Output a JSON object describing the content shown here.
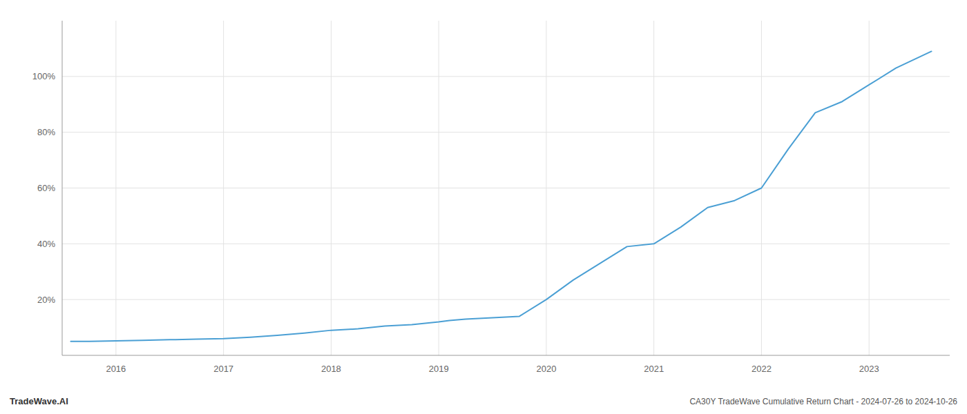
{
  "chart_data": {
    "type": "line",
    "title": "CA30Y TradeWave Cumulative Return Chart - 2024-07-26 to 2024-10-26",
    "annotations": [
      "TradeWave.AI"
    ],
    "color": "#4a9fd4",
    "x": [
      2015.58,
      2015.75,
      2016.0,
      2016.25,
      2016.5,
      2016.75,
      2017.0,
      2017.25,
      2017.5,
      2017.75,
      2018.0,
      2018.25,
      2018.5,
      2018.75,
      2019.0,
      2019.1,
      2019.25,
      2019.5,
      2019.75,
      2020.0,
      2020.25,
      2020.5,
      2020.75,
      2021.0,
      2021.25,
      2021.5,
      2021.75,
      2022.0,
      2022.25,
      2022.5,
      2022.75,
      2023.0,
      2023.25,
      2023.58
    ],
    "values": [
      0.05,
      0.05,
      0.052,
      0.054,
      0.056,
      0.058,
      0.06,
      0.065,
      0.072,
      0.08,
      0.09,
      0.095,
      0.105,
      0.11,
      0.12,
      0.125,
      0.13,
      0.135,
      0.14,
      0.2,
      0.27,
      0.33,
      0.39,
      0.4,
      0.46,
      0.53,
      0.555,
      0.6,
      0.74,
      0.87,
      0.91,
      0.97,
      1.03,
      1.09
    ],
    "xlim": [
      2015.5,
      2023.75
    ],
    "xticks": [
      2016,
      2017,
      2018,
      2019,
      2020,
      2021,
      2022,
      2023
    ],
    "ylim": [
      0.0,
      1.2
    ],
    "yticks": [
      {
        "value": 0.2,
        "label": "20%"
      },
      {
        "value": 0.4,
        "label": "40%"
      },
      {
        "value": 0.6,
        "label": "60%"
      },
      {
        "value": 0.8,
        "label": "80%"
      },
      {
        "value": 1.0,
        "label": "100%"
      }
    ],
    "grid": true
  }
}
